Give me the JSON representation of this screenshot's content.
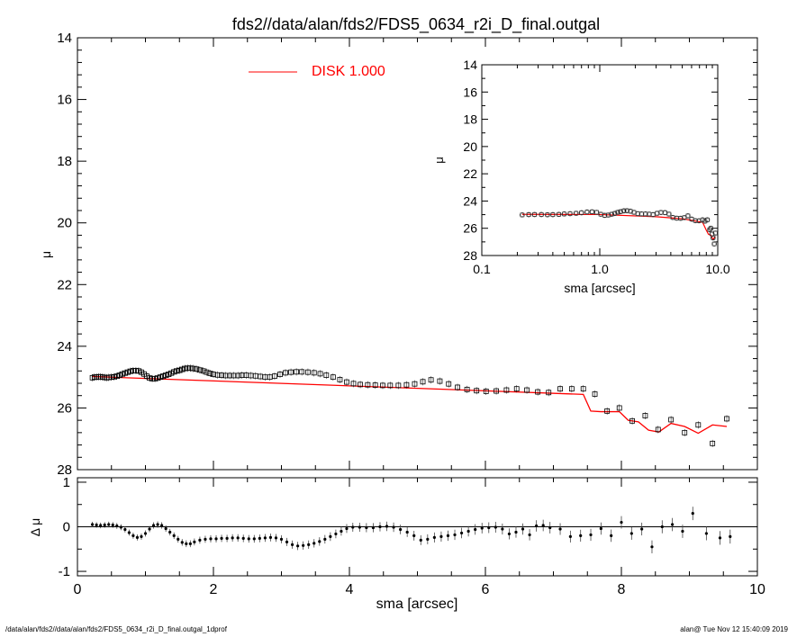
{
  "chart_data": [
    {
      "type": "scatter",
      "panel": "main-profile",
      "title": "fds2//data/alan/fds2/FDS5_0634_r2i_D_final.outgal",
      "xlabel": "",
      "ylabel": "μ",
      "xlim": [
        0,
        10
      ],
      "ylim": [
        28,
        14
      ],
      "y_inverted": true,
      "x_ticks": [],
      "y_ticks": [
        "14",
        "16",
        "18",
        "20",
        "22",
        "24",
        "26",
        "28"
      ],
      "legend": {
        "label": "DISK  1.000",
        "color": "#ff0000",
        "placement": "top-center"
      },
      "series": [
        {
          "role": "data-points",
          "marker": "square",
          "x": [
            0.22,
            0.25,
            0.28,
            0.31,
            0.34,
            0.37,
            0.4,
            0.43,
            0.46,
            0.5,
            0.54,
            0.58,
            0.62,
            0.66,
            0.7,
            0.74,
            0.78,
            0.82,
            0.86,
            0.9,
            0.94,
            0.98,
            1.02,
            1.06,
            1.1,
            1.14,
            1.18,
            1.22,
            1.26,
            1.3,
            1.34,
            1.38,
            1.42,
            1.46,
            1.5,
            1.54,
            1.58,
            1.62,
            1.66,
            1.7,
            1.75,
            1.8,
            1.85,
            1.9,
            1.95,
            2.0,
            2.06,
            2.12,
            2.18,
            2.24,
            2.3,
            2.36,
            2.42,
            2.48,
            2.55,
            2.62,
            2.69,
            2.76,
            2.83,
            2.9,
            2.98,
            3.06,
            3.14,
            3.22,
            3.3,
            3.39,
            3.48,
            3.57,
            3.66,
            3.76,
            3.86,
            3.96,
            4.06,
            4.16,
            4.27,
            4.38,
            4.49,
            4.6,
            4.72,
            4.84,
            4.96,
            5.08,
            5.2,
            5.33,
            5.46,
            5.59,
            5.73,
            5.87,
            6.01,
            6.16,
            6.31,
            6.46,
            6.61,
            6.77,
            6.93,
            7.1,
            7.27,
            7.44,
            7.61,
            7.79,
            7.97,
            8.16,
            8.35,
            8.54,
            8.73,
            8.93,
            9.13,
            9.34,
            9.55
          ],
          "y": [
            25.02,
            25.0,
            25.0,
            24.99,
            24.99,
            25.0,
            25.01,
            25.02,
            25.01,
            25.0,
            24.99,
            24.97,
            24.94,
            24.9,
            24.87,
            24.84,
            24.81,
            24.79,
            24.79,
            24.8,
            24.84,
            24.9,
            24.97,
            25.03,
            25.05,
            25.05,
            25.03,
            25.0,
            24.97,
            24.94,
            24.91,
            24.87,
            24.83,
            24.8,
            24.78,
            24.75,
            24.72,
            24.71,
            24.71,
            24.72,
            24.74,
            24.77,
            24.8,
            24.84,
            24.88,
            24.91,
            24.93,
            24.94,
            24.95,
            24.95,
            24.95,
            24.95,
            24.94,
            24.94,
            24.95,
            24.96,
            24.98,
            25.0,
            25.0,
            24.97,
            24.91,
            24.86,
            24.84,
            24.83,
            24.83,
            24.84,
            24.86,
            24.89,
            24.94,
            25.0,
            25.08,
            25.16,
            25.21,
            25.24,
            25.25,
            25.26,
            25.27,
            25.27,
            25.27,
            25.25,
            25.22,
            25.15,
            25.09,
            25.13,
            25.22,
            25.33,
            25.4,
            25.44,
            25.46,
            25.45,
            25.42,
            25.38,
            25.42,
            25.48,
            25.5,
            25.38,
            25.38,
            25.38,
            25.55,
            26.1,
            26.0,
            26.42,
            26.25,
            26.7,
            26.38,
            26.8,
            26.55,
            27.15,
            26.35
          ],
          "color": "#000000"
        },
        {
          "role": "disk-model",
          "line": true,
          "color": "#ff0000",
          "name": "DISK  1.000",
          "x": [
            0.22,
            7.44,
            7.55,
            7.7,
            7.97,
            8.1,
            8.25,
            8.4,
            8.55,
            8.73,
            8.93,
            9.13,
            9.34,
            9.55
          ],
          "y": [
            24.98,
            25.56,
            26.1,
            26.12,
            26.12,
            26.4,
            26.45,
            26.72,
            26.78,
            26.5,
            26.6,
            26.82,
            26.55,
            26.6
          ]
        }
      ]
    },
    {
      "type": "scatter",
      "panel": "residuals",
      "xlabel": "sma [arcsec]",
      "ylabel": "Δ μ",
      "xlim": [
        0,
        10
      ],
      "ylim": [
        -1.1,
        1.1
      ],
      "x_ticks": [
        "0",
        "2",
        "4",
        "6",
        "8",
        "10"
      ],
      "y_ticks": [
        "1",
        "0",
        "-1"
      ],
      "zero_line": true,
      "series": [
        {
          "role": "residual-points",
          "marker": "errorbar",
          "x": [
            0.22,
            0.28,
            0.34,
            0.4,
            0.46,
            0.52,
            0.58,
            0.64,
            0.7,
            0.76,
            0.82,
            0.88,
            0.94,
            1.0,
            1.06,
            1.12,
            1.18,
            1.24,
            1.3,
            1.36,
            1.42,
            1.48,
            1.54,
            1.6,
            1.66,
            1.72,
            1.8,
            1.88,
            1.96,
            2.04,
            2.12,
            2.2,
            2.28,
            2.36,
            2.44,
            2.52,
            2.6,
            2.68,
            2.76,
            2.84,
            2.92,
            3.0,
            3.08,
            3.16,
            3.24,
            3.32,
            3.4,
            3.48,
            3.56,
            3.64,
            3.72,
            3.8,
            3.88,
            3.96,
            4.05,
            4.15,
            4.25,
            4.35,
            4.45,
            4.55,
            4.65,
            4.75,
            4.85,
            4.95,
            5.05,
            5.15,
            5.25,
            5.35,
            5.45,
            5.55,
            5.65,
            5.75,
            5.85,
            5.95,
            6.05,
            6.15,
            6.25,
            6.35,
            6.45,
            6.55,
            6.65,
            6.75,
            6.85,
            6.95,
            7.1,
            7.25,
            7.4,
            7.55,
            7.7,
            7.85,
            8.0,
            8.15,
            8.3,
            8.45,
            8.6,
            8.75,
            8.9,
            9.05,
            9.25,
            9.45,
            9.6
          ],
          "y": [
            0.05,
            0.04,
            0.03,
            0.04,
            0.05,
            0.04,
            0.02,
            -0.01,
            -0.06,
            -0.13,
            -0.2,
            -0.24,
            -0.22,
            -0.15,
            -0.05,
            0.03,
            0.05,
            0.03,
            -0.04,
            -0.12,
            -0.2,
            -0.28,
            -0.35,
            -0.38,
            -0.38,
            -0.34,
            -0.3,
            -0.28,
            -0.27,
            -0.27,
            -0.26,
            -0.26,
            -0.25,
            -0.25,
            -0.26,
            -0.27,
            -0.27,
            -0.26,
            -0.25,
            -0.24,
            -0.25,
            -0.28,
            -0.34,
            -0.4,
            -0.43,
            -0.42,
            -0.4,
            -0.37,
            -0.33,
            -0.28,
            -0.22,
            -0.16,
            -0.1,
            -0.04,
            -0.01,
            -0.01,
            -0.02,
            -0.02,
            0.0,
            0.01,
            -0.01,
            -0.06,
            -0.12,
            -0.2,
            -0.3,
            -0.28,
            -0.24,
            -0.22,
            -0.2,
            -0.18,
            -0.14,
            -0.1,
            -0.06,
            -0.03,
            -0.02,
            -0.01,
            -0.05,
            -0.16,
            -0.12,
            -0.05,
            -0.18,
            0.02,
            0.03,
            -0.02,
            -0.05,
            -0.22,
            -0.2,
            -0.18,
            -0.04,
            -0.2,
            0.1,
            -0.15,
            -0.05,
            -0.45,
            0.0,
            0.05,
            -0.1,
            0.3,
            -0.15,
            -0.25,
            -0.22
          ],
          "color": "#000000"
        }
      ]
    },
    {
      "type": "scatter",
      "panel": "inset-log",
      "xlabel": "sma [arcsec]",
      "ylabel": "μ",
      "x_scale": "log",
      "xlim": [
        0.1,
        10.0
      ],
      "ylim": [
        28,
        14
      ],
      "y_inverted": true,
      "x_ticks": [
        "0.1",
        "1.0",
        "10.0"
      ],
      "y_ticks": [
        "14",
        "16",
        "18",
        "20",
        "22",
        "24",
        "26",
        "28"
      ],
      "series": [
        {
          "role": "data-points",
          "marker": "circle-square",
          "x": [
            0.22,
            0.25,
            0.28,
            0.32,
            0.36,
            0.4,
            0.45,
            0.5,
            0.56,
            0.63,
            0.7,
            0.78,
            0.86,
            0.94,
            1.02,
            1.1,
            1.18,
            1.26,
            1.34,
            1.42,
            1.5,
            1.6,
            1.7,
            1.82,
            1.95,
            2.1,
            2.26,
            2.44,
            2.62,
            2.83,
            3.06,
            3.3,
            3.57,
            3.86,
            4.16,
            4.49,
            4.84,
            5.2,
            5.59,
            6.01,
            6.46,
            6.93,
            7.44,
            7.79,
            8.16,
            8.54,
            8.73,
            8.93,
            9.13,
            9.34,
            9.55
          ],
          "y": [
            25.02,
            25.0,
            24.99,
            24.99,
            25.01,
            25.0,
            24.98,
            24.95,
            24.93,
            24.9,
            24.86,
            24.81,
            24.79,
            24.83,
            24.97,
            25.05,
            25.03,
            24.97,
            24.91,
            24.83,
            24.78,
            24.72,
            24.71,
            24.75,
            24.83,
            24.93,
            24.95,
            24.95,
            24.96,
            25.0,
            24.9,
            24.84,
            24.85,
            24.96,
            25.21,
            25.26,
            25.27,
            25.22,
            25.09,
            25.33,
            25.44,
            25.45,
            25.38,
            25.48,
            25.38,
            26.1,
            26.0,
            26.42,
            26.7,
            27.15,
            26.35
          ],
          "color": "#000000"
        },
        {
          "role": "disk-model",
          "line": true,
          "color": "#ff0000",
          "x": [
            0.22,
            1.0,
            3.0,
            5.0,
            7.44,
            7.97,
            8.35,
            8.73,
            9.13,
            9.55
          ],
          "y": [
            24.98,
            24.99,
            25.15,
            25.3,
            25.56,
            26.12,
            26.45,
            26.5,
            26.82,
            26.6
          ]
        }
      ]
    }
  ],
  "footer": {
    "left": "/data/alan/fds2//data/alan/fds2/FDS5_0634_r2i_D_final.outgal_1dprof",
    "right": "alan@  Tue Nov 12 15:40:09 2019"
  }
}
